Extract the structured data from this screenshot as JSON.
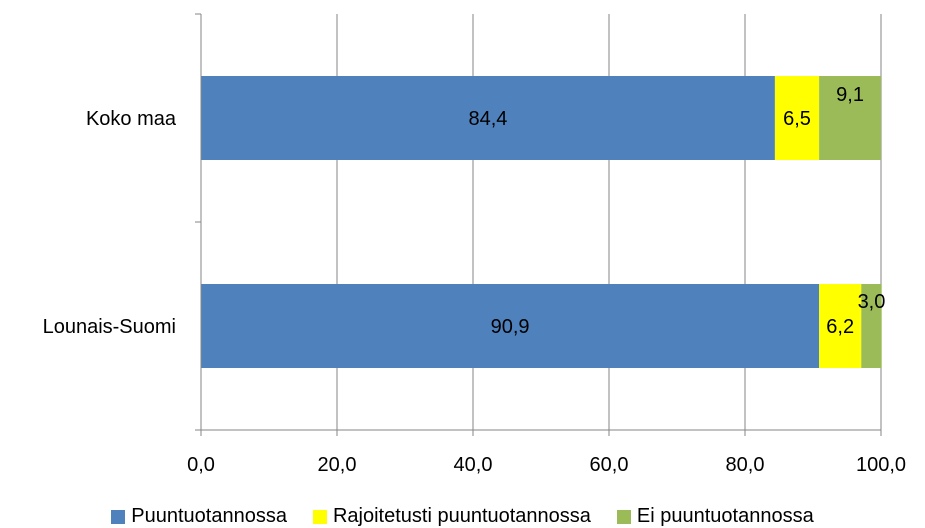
{
  "chart_data": {
    "type": "bar",
    "orientation": "horizontal",
    "stacked": true,
    "categories": [
      "Koko maa",
      "Lounais-Suomi"
    ],
    "series": [
      {
        "name": "Puuntuotannossa",
        "color": "#4F81BD",
        "values": [
          84.4,
          90.9
        ],
        "labels": [
          "84,4",
          "90,9"
        ]
      },
      {
        "name": "Rajoitetusti puuntuotannossa",
        "color": "#FFFF00",
        "values": [
          6.5,
          6.2
        ],
        "labels": [
          "6,5",
          "6,2"
        ]
      },
      {
        "name": "Ei puuntuotannossa",
        "color": "#9BBB59",
        "values": [
          9.1,
          3.0
        ],
        "labels": [
          "9,1",
          "3,0"
        ]
      }
    ],
    "xlim": [
      0,
      100
    ],
    "x_ticks": [
      0,
      20,
      40,
      60,
      80,
      100
    ],
    "x_tick_labels": [
      "0,0",
      "20,0",
      "40,0",
      "60,0",
      "80,0",
      "100,0"
    ],
    "grid": true,
    "legend_position": "bottom",
    "title": "",
    "xlabel": "",
    "ylabel": ""
  }
}
